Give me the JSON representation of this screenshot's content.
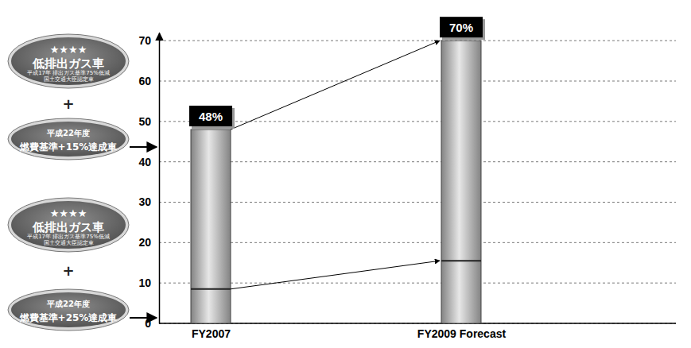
{
  "chart_data": {
    "type": "bar",
    "categories": [
      "FY2007",
      "FY2009 Forecast"
    ],
    "ylim": [
      0,
      72
    ],
    "yticks": [
      0,
      10,
      20,
      30,
      40,
      50,
      60,
      70
    ],
    "grid": true,
    "data_labels": true,
    "series": [
      {
        "name": "燃費基準+15%達成車",
        "type": "bar",
        "color": "#b4b4b4",
        "values": [
          48,
          70
        ],
        "value_labels": [
          "48%",
          "70%"
        ],
        "badge": [
          "★★★★",
          "低排出ガス車",
          "平成17年 排出ガス基準75%低減",
          "国土交通大臣認定車",
          "+",
          "平成22年度"
        ]
      },
      {
        "name": "燃費基準+25%達成車",
        "type": "line",
        "color": "#222222",
        "values": [
          8.5,
          15.5
        ],
        "badge": [
          "★★★★",
          "低排出ガス車",
          "平成17年 排出ガス基準75%低減",
          "国土交通大臣認定車",
          "+",
          "平成22年度"
        ]
      }
    ]
  }
}
